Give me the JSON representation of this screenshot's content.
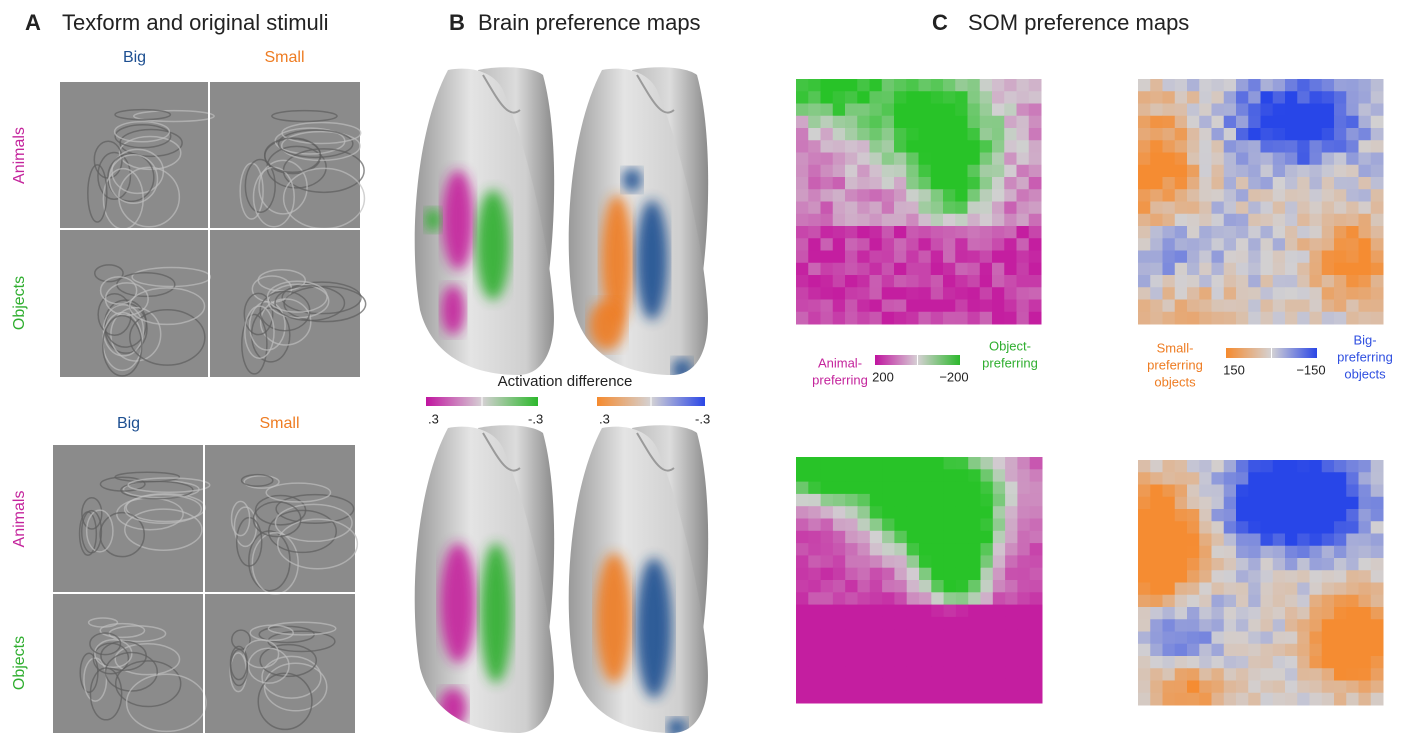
{
  "panel_a": {
    "letter": "A",
    "title": "Texform and original stimuli",
    "texform": {
      "columns": [
        "Big",
        "Small"
      ],
      "rows": [
        "Animals",
        "Objects"
      ]
    },
    "original": {
      "columns": [
        "Big",
        "Small"
      ],
      "rows": [
        "Animals",
        "Objects"
      ]
    }
  },
  "panel_b": {
    "letter": "B",
    "title": "Brain preference maps",
    "colorbar_title": "Activation difference",
    "colorbars": [
      {
        "min_label": ".3",
        "max_label": "-.3"
      },
      {
        "min_label": ".3",
        "max_label": "-.3"
      }
    ]
  },
  "panel_c": {
    "letter": "C",
    "title": "SOM preference maps",
    "legends": [
      {
        "left_label": [
          "Animal-",
          "preferring"
        ],
        "right_label": [
          "Object-",
          "preferring"
        ],
        "min_label": "200",
        "max_label": "−200"
      },
      {
        "left_label": [
          "Small-",
          "preferring",
          "objects"
        ],
        "right_label": [
          "Big-",
          "preferring",
          "objects"
        ],
        "min_label": "150",
        "max_label": "−150"
      }
    ]
  }
}
